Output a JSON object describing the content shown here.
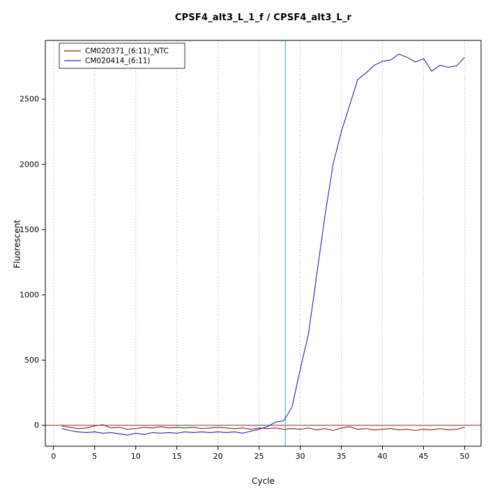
{
  "chart_data": {
    "type": "line",
    "title": "CPSF4_alt3_L_1_f / CPSF4_alt3_L_r",
    "xlabel": "Cycle",
    "ylabel": "Fluorescent",
    "xlim": [
      -1,
      52
    ],
    "ylim": [
      -160,
      2950
    ],
    "x_ticks": [
      0,
      5,
      10,
      15,
      20,
      25,
      30,
      35,
      40,
      45,
      50
    ],
    "y_ticks": [
      0,
      500,
      1000,
      1500,
      2000,
      2500
    ],
    "grid": "vertical-dotted",
    "legend_position": "top-left",
    "x": [
      1,
      2,
      3,
      4,
      5,
      6,
      7,
      8,
      9,
      10,
      11,
      12,
      13,
      14,
      15,
      16,
      17,
      18,
      19,
      20,
      21,
      22,
      23,
      24,
      25,
      26,
      27,
      28,
      29,
      30,
      31,
      32,
      33,
      34,
      35,
      36,
      37,
      38,
      39,
      40,
      41,
      42,
      43,
      44,
      45,
      46,
      47,
      48,
      49,
      50
    ],
    "series": [
      {
        "name": "CM020371_(6:11)_NTC",
        "color": "#8b2323",
        "values": [
          -5,
          -15,
          -25,
          -20,
          -5,
          5,
          -20,
          -15,
          -30,
          -25,
          -15,
          -20,
          -10,
          -20,
          -15,
          -20,
          -15,
          -25,
          -20,
          -15,
          -20,
          -25,
          -20,
          -30,
          -20,
          -25,
          -20,
          -30,
          -25,
          -30,
          -20,
          -35,
          -25,
          -40,
          -20,
          -10,
          -30,
          -25,
          -35,
          -30,
          -25,
          -35,
          -30,
          -40,
          -30,
          -35,
          -25,
          -35,
          -30,
          -15
        ]
      },
      {
        "name": "CM020414_(6:11)",
        "color": "#26269e",
        "values": [
          -25,
          -40,
          -50,
          -55,
          -50,
          -60,
          -55,
          -65,
          -75,
          -60,
          -70,
          -55,
          -60,
          -55,
          -60,
          -50,
          -55,
          -50,
          -55,
          -50,
          -55,
          -50,
          -60,
          -45,
          -30,
          -10,
          25,
          35,
          140,
          430,
          700,
          1150,
          1600,
          2000,
          2250,
          2450,
          2650,
          2700,
          2760,
          2790,
          2800,
          2845,
          2820,
          2785,
          2810,
          2715,
          2760,
          2745,
          2755,
          2820
        ]
      }
    ],
    "threshold_lines": {
      "horizontal": {
        "y": 0,
        "color": "#8b2323"
      },
      "vertical": {
        "x": 28.2,
        "color": "#00e5ee"
      }
    },
    "colors": {
      "axis": "#000000",
      "grid": "#999999",
      "background": "#ffffff"
    }
  }
}
